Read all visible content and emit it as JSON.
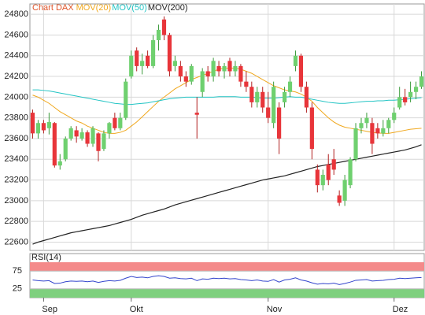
{
  "chart_data": [
    {
      "type": "candlestick",
      "name": "Chart DAX",
      "color": "#e0552a",
      "up_color": "#6fd06f",
      "down_color": "#e8353a",
      "categories": [
        null,
        null,
        "Sep",
        null,
        null,
        null,
        null,
        null,
        null,
        null,
        null,
        null,
        null,
        null,
        null,
        null,
        null,
        null,
        "Okt",
        null,
        null,
        null,
        null,
        null,
        null,
        null,
        null,
        null,
        null,
        null,
        null,
        null,
        null,
        null,
        null,
        null,
        null,
        null,
        null,
        null,
        null,
        null,
        null,
        "Nov",
        null,
        null,
        null,
        null,
        null,
        null,
        null,
        null,
        null,
        null,
        null,
        null,
        null,
        null,
        null,
        null,
        null,
        null,
        null,
        null,
        null,
        null,
        "Dez",
        null,
        null,
        null,
        null,
        null
      ],
      "open": [
        23850,
        23650,
        23750,
        23700,
        23750,
        23340,
        23400,
        23600,
        23680,
        23600,
        23660,
        23550,
        23650,
        23500,
        23650,
        23800,
        23700,
        23800,
        24200,
        24450,
        24300,
        24400,
        24300,
        24550,
        24750,
        24600,
        24300,
        24300,
        24200,
        24150,
        23850,
        24050,
        24250,
        24200,
        24300,
        24250,
        24350,
        24250,
        24300,
        24150,
        24100,
        23950,
        24050,
        23900,
        23750,
        23900,
        23950,
        24050,
        24300,
        24400,
        24100,
        23900,
        23300,
        23150,
        23350,
        23400,
        23050,
        23000,
        23150,
        23400,
        23700,
        23750,
        23750,
        23700,
        23650,
        23700,
        23780,
        23900,
        24000,
        24000,
        24050,
        24100
      ],
      "high": [
        23880,
        23780,
        23780,
        23850,
        23760,
        23450,
        23620,
        23720,
        23720,
        23700,
        23680,
        23720,
        23660,
        23680,
        23760,
        23850,
        23850,
        24180,
        24450,
        24480,
        24420,
        24450,
        24600,
        24700,
        24780,
        24620,
        24400,
        24350,
        24250,
        24320,
        24000,
        24280,
        24300,
        24380,
        24350,
        24330,
        24380,
        24350,
        24320,
        24250,
        24150,
        24100,
        24100,
        24050,
        24150,
        23950,
        24100,
        24200,
        24450,
        24420,
        24150,
        23950,
        23350,
        23300,
        23450,
        23500,
        23100,
        23250,
        23420,
        23750,
        23800,
        23850,
        23800,
        23750,
        23780,
        23800,
        23900,
        24100,
        24080,
        24150,
        24150,
        24250
      ],
      "low": [
        23600,
        23600,
        23650,
        23640,
        23320,
        23300,
        23380,
        23580,
        23560,
        23580,
        23520,
        23520,
        23380,
        23480,
        23600,
        23680,
        23680,
        23780,
        24180,
        24250,
        24220,
        24280,
        24280,
        24450,
        24550,
        24200,
        24250,
        24150,
        24100,
        24120,
        23600,
        24000,
        24150,
        24150,
        24200,
        24180,
        24200,
        24200,
        24100,
        24050,
        23900,
        23900,
        23850,
        23750,
        23700,
        23450,
        23900,
        24000,
        24250,
        24050,
        23850,
        23400,
        23080,
        23100,
        23150,
        23250,
        22950,
        22950,
        23120,
        23380,
        23650,
        23700,
        23450,
        23600,
        23620,
        23650,
        23750,
        23880,
        23920,
        23950,
        23980,
        24080
      ],
      "close": [
        23650,
        23750,
        23680,
        23760,
        23340,
        23380,
        23600,
        23700,
        23620,
        23660,
        23550,
        23700,
        23480,
        23650,
        23750,
        23700,
        23800,
        24150,
        24400,
        24300,
        24350,
        24300,
        24550,
        24650,
        24600,
        24250,
        24350,
        24200,
        24150,
        24300,
        23830,
        24250,
        24200,
        24350,
        24250,
        24300,
        24250,
        24300,
        24150,
        24100,
        23950,
        24050,
        23900,
        23800,
        24100,
        23600,
        24050,
        24150,
        24400,
        24100,
        23900,
        23500,
        23150,
        23250,
        23200,
        23300,
        22980,
        23200,
        23400,
        23700,
        23750,
        23800,
        23550,
        23650,
        23700,
        23780,
        23850,
        24000,
        23950,
        24050,
        24100,
        24200
      ],
      "lines": [
        {
          "name": "MOV(20)",
          "color": "#f0a81e",
          "values": [
            24020,
            24000,
            23970,
            23940,
            23900,
            23860,
            23830,
            23800,
            23770,
            23750,
            23720,
            23700,
            23680,
            23660,
            23650,
            23650,
            23660,
            23680,
            23720,
            23760,
            23810,
            23860,
            23910,
            23960,
            24000,
            24040,
            24080,
            24110,
            24140,
            24170,
            24190,
            24210,
            24230,
            24250,
            24270,
            24280,
            24280,
            24280,
            24270,
            24250,
            24230,
            24200,
            24170,
            24140,
            24110,
            24090,
            24070,
            24060,
            24050,
            24030,
            24000,
            23960,
            23900,
            23850,
            23800,
            23760,
            23730,
            23710,
            23700,
            23690,
            23680,
            23670,
            23660,
            23655,
            23650,
            23650,
            23660,
            23670,
            23680,
            23690,
            23695,
            23700
          ]
        },
        {
          "name": "MOV(50)",
          "color": "#22c4c4",
          "values": [
            24070,
            24070,
            24065,
            24060,
            24050,
            24040,
            24030,
            24020,
            24010,
            24000,
            23990,
            23980,
            23970,
            23960,
            23950,
            23940,
            23935,
            23930,
            23930,
            23935,
            23940,
            23945,
            23955,
            23965,
            23975,
            23985,
            23990,
            23995,
            24000,
            24000,
            24000,
            24000,
            24000,
            24000,
            24005,
            24005,
            24005,
            24005,
            24000,
            24000,
            24000,
            23995,
            23990,
            23990,
            23990,
            23995,
            24000,
            24005,
            24000,
            24000,
            23990,
            23980,
            23970,
            23960,
            23950,
            23945,
            23940,
            23940,
            23945,
            23950,
            23955,
            23960,
            23960,
            23965,
            23965,
            23970,
            23970,
            23975,
            23980,
            23985,
            23990,
            23995
          ]
        },
        {
          "name": "MOV(200)",
          "color": "#222222",
          "values": [
            22580,
            22600,
            22615,
            22630,
            22645,
            22660,
            22675,
            22690,
            22700,
            22710,
            22720,
            22730,
            22740,
            22750,
            22760,
            22775,
            22790,
            22805,
            22820,
            22840,
            22860,
            22875,
            22890,
            22905,
            22920,
            22940,
            22960,
            22975,
            22990,
            23005,
            23020,
            23035,
            23050,
            23065,
            23080,
            23095,
            23110,
            23125,
            23140,
            23155,
            23170,
            23185,
            23200,
            23210,
            23220,
            23230,
            23240,
            23255,
            23270,
            23285,
            23300,
            23315,
            23330,
            23340,
            23350,
            23360,
            23370,
            23380,
            23390,
            23400,
            23410,
            23420,
            23430,
            23440,
            23450,
            23460,
            23470,
            23480,
            23490,
            23505,
            23520,
            23540
          ]
        }
      ],
      "ylim": [
        22520,
        24900
      ],
      "yticks": [
        22600,
        22800,
        23000,
        23200,
        23400,
        23600,
        23800,
        24000,
        24200,
        24400,
        24600,
        24800
      ],
      "grid": true
    },
    {
      "type": "line",
      "title": "RSI(14)",
      "color": "#3344cc",
      "values": [
        50,
        48,
        47,
        48,
        40,
        41,
        45,
        47,
        46,
        47,
        45,
        47,
        43,
        46,
        48,
        47,
        49,
        55,
        60,
        57,
        58,
        56,
        60,
        62,
        60,
        55,
        56,
        54,
        53,
        55,
        48,
        53,
        52,
        55,
        54,
        55,
        53,
        54,
        51,
        50,
        48,
        50,
        47,
        46,
        51,
        44,
        50,
        52,
        56,
        50,
        47,
        42,
        38,
        40,
        39,
        41,
        37,
        40,
        44,
        49,
        50,
        51,
        47,
        48,
        49,
        51,
        52,
        55,
        54,
        55,
        56,
        57
      ],
      "ylim": [
        0,
        100
      ],
      "yticks": [
        25,
        75
      ],
      "bands": [
        {
          "from": 75,
          "to": 100,
          "color": "#f48a8a"
        },
        {
          "from": 0,
          "to": 25,
          "color": "#7fd07f"
        }
      ]
    }
  ]
}
